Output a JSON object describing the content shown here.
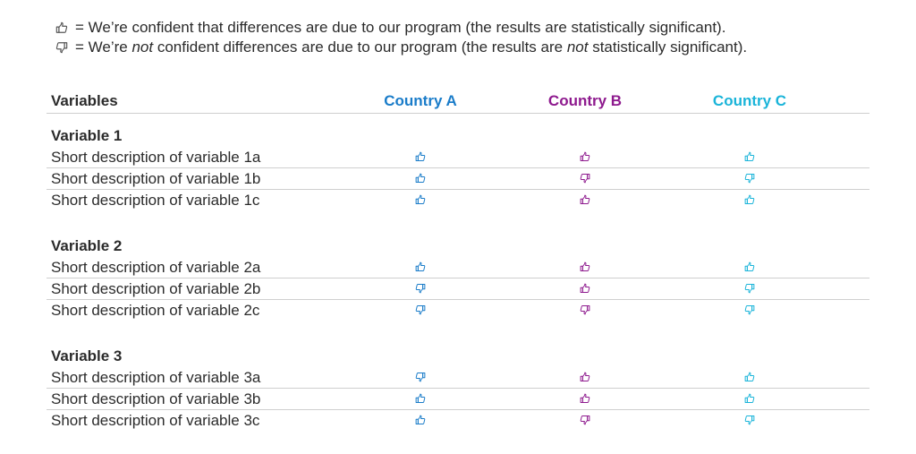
{
  "legend": {
    "confident_prefix": "= We’re confident that differences are due to our program (the results are statistically significant).",
    "not_confident_p1": "= We’re ",
    "not_confident_em1": "not",
    "not_confident_p2": " confident differences are due to our program (the results are ",
    "not_confident_em2": "not",
    "not_confident_p3": " statistically significant)."
  },
  "colors": {
    "country_a": "#1a7cc9",
    "country_b": "#8e1a8e",
    "country_c": "#1ab4d9",
    "text": "#2b2b2b"
  },
  "header": {
    "variables": "Variables",
    "country_a": "Country A",
    "country_b": "Country B",
    "country_c": "Country C"
  },
  "groups": [
    {
      "title": "Variable 1",
      "rows": [
        {
          "label": "Short description of variable 1a",
          "a": "up",
          "b": "up",
          "c": "up"
        },
        {
          "label": "Short description of variable 1b",
          "a": "up",
          "b": "down",
          "c": "down"
        },
        {
          "label": "Short description of variable 1c",
          "a": "up",
          "b": "up",
          "c": "up"
        }
      ]
    },
    {
      "title": "Variable 2",
      "rows": [
        {
          "label": "Short description of variable 2a",
          "a": "up",
          "b": "up",
          "c": "up"
        },
        {
          "label": "Short description of variable 2b",
          "a": "down",
          "b": "up",
          "c": "down"
        },
        {
          "label": "Short description of variable 2c",
          "a": "down",
          "b": "down",
          "c": "down"
        }
      ]
    },
    {
      "title": "Variable 3",
      "rows": [
        {
          "label": "Short description of variable 3a",
          "a": "down",
          "b": "up",
          "c": "up"
        },
        {
          "label": "Short description of variable 3b",
          "a": "up",
          "b": "up",
          "c": "up"
        },
        {
          "label": "Short description of variable 3c",
          "a": "up",
          "b": "down",
          "c": "down"
        }
      ]
    }
  ]
}
